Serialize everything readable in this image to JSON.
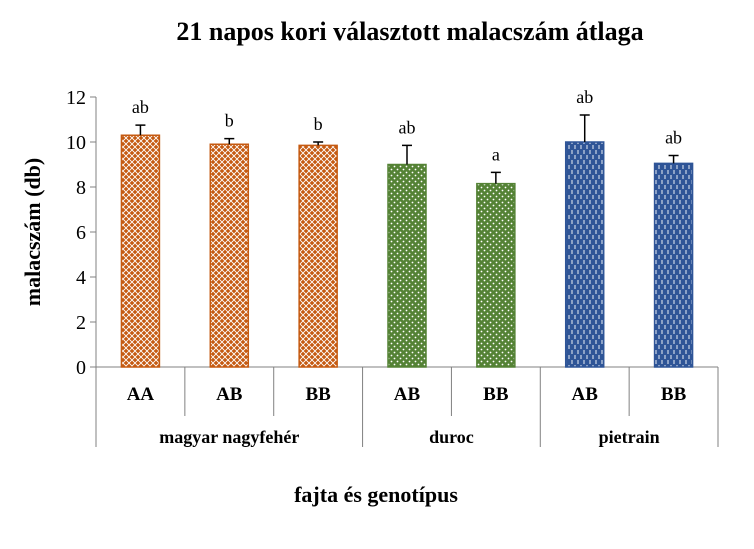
{
  "chart_data": {
    "type": "bar",
    "title": "21 napos kori választott malacszám átlaga",
    "xlabel": "fajta és genotípus",
    "ylabel": "malacszám (db)",
    "ylim": [
      0,
      12
    ],
    "yticks": [
      0,
      2,
      4,
      6,
      8,
      10,
      12
    ],
    "grid": false,
    "categories": [
      "AA",
      "AB",
      "BB",
      "AB",
      "BB",
      "AB",
      "BB"
    ],
    "groups": [
      {
        "label": "magyar nagyfehér",
        "categories": [
          "AA",
          "AB",
          "BB"
        ],
        "color": "#C55A11"
      },
      {
        "label": "duroc",
        "categories": [
          "AB",
          "BB"
        ],
        "color": "#548235"
      },
      {
        "label": "pietrain",
        "categories": [
          "AB",
          "BB"
        ],
        "color": "#2F5597"
      }
    ],
    "values": [
      10.3,
      9.9,
      9.85,
      9.0,
      8.15,
      10.0,
      9.05
    ],
    "errors": [
      0.45,
      0.25,
      0.15,
      0.85,
      0.5,
      1.2,
      0.35
    ],
    "significance": [
      "ab",
      "b",
      "b",
      "ab",
      "a",
      "ab",
      "ab"
    ],
    "colors": [
      "#C55A11",
      "#C55A11",
      "#C55A11",
      "#548235",
      "#548235",
      "#2F5597",
      "#2F5597"
    ]
  }
}
